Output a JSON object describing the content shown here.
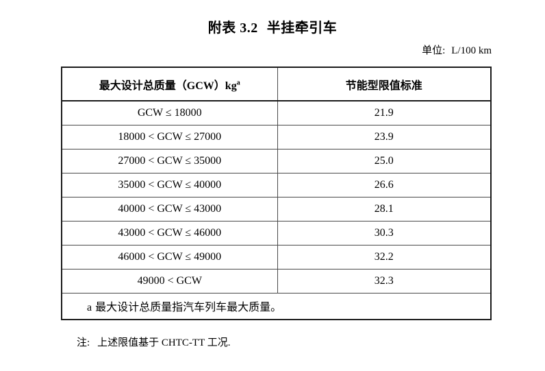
{
  "page": {
    "title_label": "附表 3.2",
    "title_main": "半挂牵引车",
    "unit_label": "单位:",
    "unit_value": "L/100 km",
    "note_label": "注:",
    "note_text": "上述限值基于 CHTC-TT 工况."
  },
  "table": {
    "header": {
      "col1_text": "最大设计总质量（GCW）kg",
      "col1_sup": "a",
      "col2_text": "节能型限值标准"
    },
    "rows": [
      {
        "range": "GCW ≤ 18000",
        "limit": "21.9"
      },
      {
        "range": "18000 < GCW ≤ 27000",
        "limit": "23.9"
      },
      {
        "range": "27000 < GCW ≤ 35000",
        "limit": "25.0"
      },
      {
        "range": "35000 < GCW ≤ 40000",
        "limit": "26.6"
      },
      {
        "range": "40000 < GCW ≤ 43000",
        "limit": "28.1"
      },
      {
        "range": "43000 < GCW ≤ 46000",
        "limit": "30.3"
      },
      {
        "range": "46000 < GCW ≤ 49000",
        "limit": "32.2"
      },
      {
        "range": "49000 < GCW",
        "limit": "32.3"
      }
    ],
    "footnote_marker": "a",
    "footnote_text": "最大设计总质量指汽车列车最大质量。"
  },
  "chart_data": {
    "type": "table",
    "title": "附表 3.2 半挂牵引车",
    "unit": "L/100 km",
    "columns": [
      "最大设计总质量（GCW）kg a",
      "节能型限值标准"
    ],
    "categories": [
      "GCW ≤ 18000",
      "18000 < GCW ≤ 27000",
      "27000 < GCW ≤ 35000",
      "35000 < GCW ≤ 40000",
      "40000 < GCW ≤ 43000",
      "43000 < GCW ≤ 46000",
      "46000 < GCW ≤ 49000",
      "49000 < GCW"
    ],
    "values": [
      21.9,
      23.9,
      25.0,
      26.6,
      28.1,
      30.3,
      32.2,
      32.3
    ],
    "annotations": [
      "a 最大设计总质量指汽车列车最大质量。",
      "注: 上述限值基于 CHTC-TT 工况."
    ]
  }
}
